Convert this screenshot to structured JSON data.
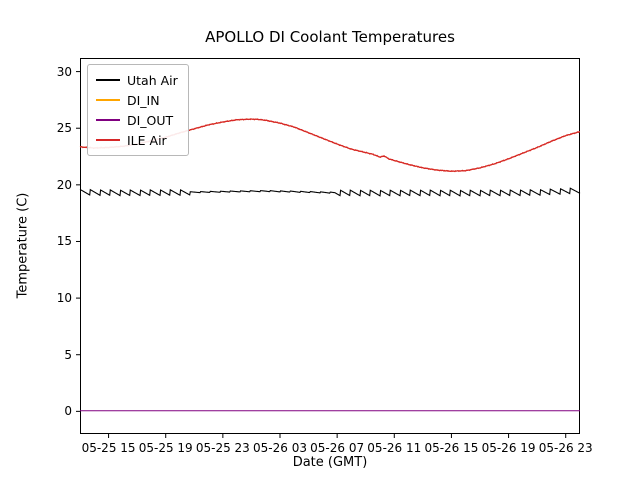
{
  "figure": {
    "background": "#ffffff",
    "axis_color": "#000000"
  },
  "chart_data": {
    "type": "line",
    "title": "APOLLO DI Coolant Temperatures",
    "xlabel": "Date (GMT)",
    "ylabel": "Temperature (C)",
    "legend_position": "upper-left",
    "grid": false,
    "x_range_hours": [
      13,
      48
    ],
    "ylim": [
      -2.0,
      31.2
    ],
    "y_ticks": [
      0,
      5,
      10,
      15,
      20,
      25,
      30
    ],
    "x_tick_hours": [
      15,
      19,
      23,
      27,
      31,
      35,
      39,
      43,
      47
    ],
    "x_tick_labels": [
      "05-25 15",
      "05-25 19",
      "05-25 23",
      "05-26 03",
      "05-26 07",
      "05-26 11",
      "05-26 15",
      "05-26 19",
      "05-26 23"
    ],
    "series": [
      {
        "name": "Utah Air",
        "color": "#000000",
        "width": 1.1,
        "points": [
          [
            13,
            19.35
          ],
          [
            16,
            19.3
          ],
          [
            20,
            19.33
          ],
          [
            24,
            19.42
          ],
          [
            26,
            19.45
          ],
          [
            28,
            19.4
          ],
          [
            31,
            19.3
          ],
          [
            34,
            19.28
          ],
          [
            37,
            19.3
          ],
          [
            40,
            19.28
          ],
          [
            43,
            19.3
          ],
          [
            45,
            19.33
          ],
          [
            47,
            19.45
          ],
          [
            48,
            19.5
          ]
        ],
        "sawtooth": {
          "period": 0.7,
          "amp": 0.5,
          "quiet": [
            20.7,
            30.8
          ],
          "quiet_amp": 0.1
        }
      },
      {
        "name": "DI_IN",
        "color": "#ffa500",
        "width": 1.1,
        "noise": 0.03,
        "points": [
          [
            13,
            23.35
          ],
          [
            14,
            23.25
          ],
          [
            15,
            23.3
          ],
          [
            16,
            23.4
          ],
          [
            17,
            23.6
          ],
          [
            18,
            23.9
          ],
          [
            19,
            24.2
          ],
          [
            20,
            24.6
          ],
          [
            21,
            24.95
          ],
          [
            22,
            25.3
          ],
          [
            23,
            25.55
          ],
          [
            24,
            25.75
          ],
          [
            25,
            25.8
          ],
          [
            25.5,
            25.78
          ],
          [
            26,
            25.7
          ],
          [
            27,
            25.45
          ],
          [
            28,
            25.1
          ],
          [
            29,
            24.6
          ],
          [
            30,
            24.1
          ],
          [
            31,
            23.6
          ],
          [
            32,
            23.15
          ],
          [
            33,
            22.85
          ],
          [
            33.5,
            22.7
          ],
          [
            34,
            22.45
          ],
          [
            34.3,
            22.55
          ],
          [
            34.6,
            22.3
          ],
          [
            35,
            22.15
          ],
          [
            36,
            21.8
          ],
          [
            37,
            21.5
          ],
          [
            38,
            21.3
          ],
          [
            39,
            21.2
          ],
          [
            40,
            21.25
          ],
          [
            41,
            21.5
          ],
          [
            42,
            21.85
          ],
          [
            43,
            22.3
          ],
          [
            44,
            22.8
          ],
          [
            45,
            23.3
          ],
          [
            46,
            23.85
          ],
          [
            47,
            24.35
          ],
          [
            48,
            24.7
          ]
        ]
      },
      {
        "name": "DI_OUT",
        "color": "#800080",
        "width": 1.0,
        "points": [
          [
            13,
            0.05
          ],
          [
            48,
            0.05
          ]
        ]
      },
      {
        "name": "ILE Air",
        "color": "#d62728",
        "width": 1.3,
        "noise": 0.04,
        "points": [
          [
            13,
            23.35
          ],
          [
            14,
            23.25
          ],
          [
            15,
            23.3
          ],
          [
            16,
            23.4
          ],
          [
            17,
            23.6
          ],
          [
            18,
            23.9
          ],
          [
            19,
            24.2
          ],
          [
            20,
            24.6
          ],
          [
            21,
            24.95
          ],
          [
            22,
            25.3
          ],
          [
            23,
            25.55
          ],
          [
            24,
            25.75
          ],
          [
            25,
            25.8
          ],
          [
            25.5,
            25.78
          ],
          [
            26,
            25.7
          ],
          [
            27,
            25.45
          ],
          [
            28,
            25.1
          ],
          [
            29,
            24.6
          ],
          [
            30,
            24.1
          ],
          [
            31,
            23.6
          ],
          [
            32,
            23.15
          ],
          [
            33,
            22.85
          ],
          [
            33.5,
            22.7
          ],
          [
            34,
            22.45
          ],
          [
            34.3,
            22.55
          ],
          [
            34.6,
            22.3
          ],
          [
            35,
            22.15
          ],
          [
            36,
            21.8
          ],
          [
            37,
            21.5
          ],
          [
            38,
            21.3
          ],
          [
            39,
            21.2
          ],
          [
            40,
            21.25
          ],
          [
            41,
            21.5
          ],
          [
            42,
            21.85
          ],
          [
            43,
            22.3
          ],
          [
            44,
            22.8
          ],
          [
            45,
            23.3
          ],
          [
            46,
            23.85
          ],
          [
            47,
            24.35
          ],
          [
            48,
            24.7
          ]
        ]
      }
    ]
  }
}
